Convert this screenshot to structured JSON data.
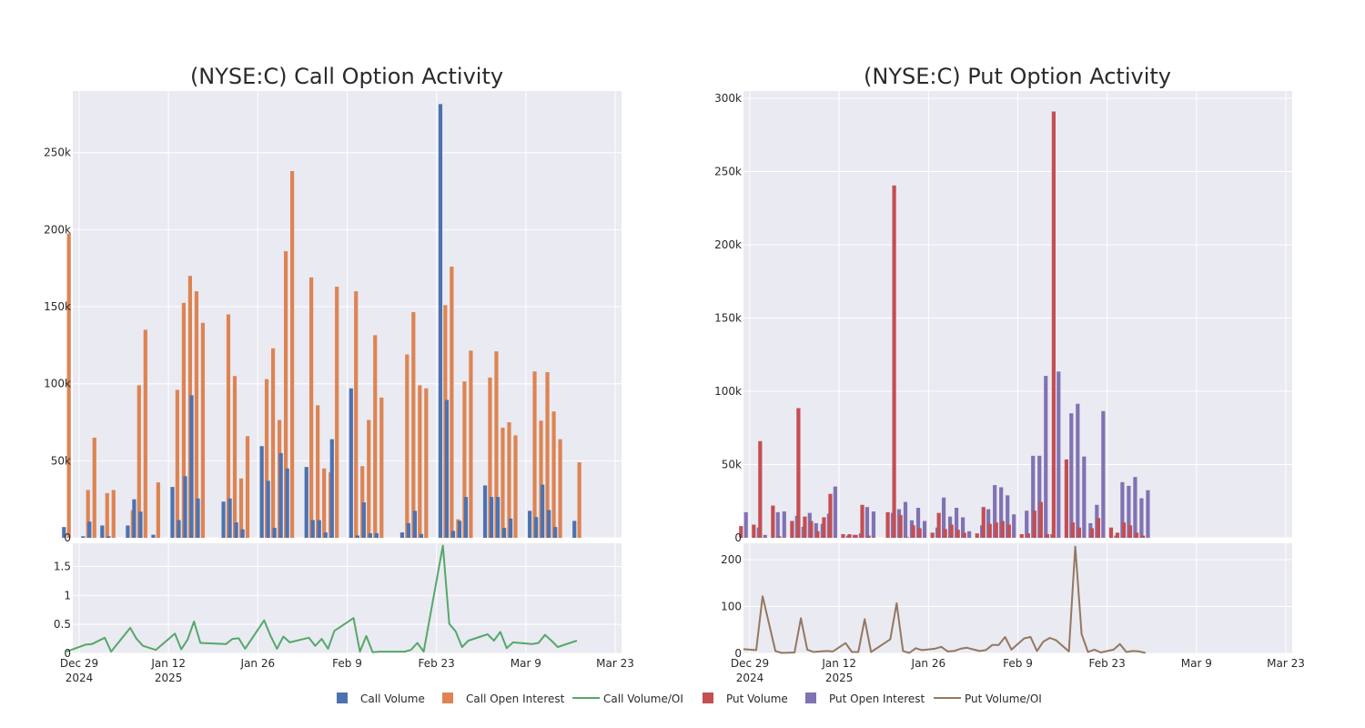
{
  "colors": {
    "call_volume": "#4c72b0",
    "call_open_interest": "#dd8452",
    "call_ratio": "#55a868",
    "put_volume": "#c44e52",
    "put_open_interest": "#8172b3",
    "put_ratio": "#937860",
    "plot_bg": "#eaeaf2",
    "grid": "#ffffff"
  },
  "x_axis": {
    "date_ticks": [
      "2024-12-29",
      "2025-01-12",
      "2025-01-26",
      "2025-02-09",
      "2025-02-23",
      "2025-03-09",
      "2025-03-23"
    ],
    "tick_labels": [
      [
        "Dec 29",
        "2024"
      ],
      [
        "Jan 12",
        "2025"
      ],
      [
        "Jan 26",
        ""
      ],
      [
        "Feb 9",
        ""
      ],
      [
        "Feb 23",
        ""
      ],
      [
        "Mar 9",
        ""
      ],
      [
        "Mar 23",
        ""
      ]
    ],
    "range": [
      "2024-12-28",
      "2025-03-24"
    ]
  },
  "legend": {
    "placement": "bottom-center",
    "items": [
      {
        "label": "Call Volume",
        "kind": "square",
        "color_key": "call_volume"
      },
      {
        "label": "Call Open Interest",
        "kind": "square",
        "color_key": "call_open_interest"
      },
      {
        "label": "Call Volume/OI",
        "kind": "line",
        "color_key": "call_ratio"
      },
      {
        "label": "Put Volume",
        "kind": "square",
        "color_key": "put_volume"
      },
      {
        "label": "Put Open Interest",
        "kind": "square",
        "color_key": "put_open_interest"
      },
      {
        "label": "Put Volume/OI",
        "kind": "line",
        "color_key": "put_ratio"
      }
    ]
  },
  "chart_data": [
    {
      "type": "bar",
      "title": "(NYSE:C) Call Option Activity",
      "grid": true,
      "ylim": [
        0,
        290000
      ],
      "ytick_values": [
        0,
        50000,
        100000,
        150000,
        200000,
        250000
      ],
      "ytick_labels": [
        "0",
        "50k",
        "100k",
        "150k",
        "200k",
        "250k"
      ],
      "ratio_ylim": [
        0,
        1.9
      ],
      "ratio_tick_values": [
        0,
        0.5,
        1,
        1.5
      ],
      "ratio_tick_labels": [
        "0",
        "0.5",
        "1",
        "1.5"
      ],
      "x": [
        "2024-12-27",
        "2024-12-30",
        "2024-12-31",
        "2025-01-02",
        "2025-01-03",
        "2025-01-06",
        "2025-01-07",
        "2025-01-08",
        "2025-01-10",
        "2025-01-13",
        "2025-01-14",
        "2025-01-15",
        "2025-01-16",
        "2025-01-17",
        "2025-01-21",
        "2025-01-22",
        "2025-01-23",
        "2025-01-24",
        "2025-01-27",
        "2025-01-28",
        "2025-01-29",
        "2025-01-30",
        "2025-01-31",
        "2025-02-03",
        "2025-02-04",
        "2025-02-05",
        "2025-02-06",
        "2025-02-07",
        "2025-02-10",
        "2025-02-11",
        "2025-02-12",
        "2025-02-13",
        "2025-02-14",
        "2025-02-18",
        "2025-02-19",
        "2025-02-20",
        "2025-02-21",
        "2025-02-24",
        "2025-02-25",
        "2025-02-26",
        "2025-02-27",
        "2025-02-28",
        "2025-03-03",
        "2025-03-04",
        "2025-03-05",
        "2025-03-06",
        "2025-03-07",
        "2025-03-10",
        "2025-03-11",
        "2025-03-12",
        "2025-03-13",
        "2025-03-14",
        "2025-03-17",
        "2025-03-18",
        "2025-03-19",
        "2025-03-20",
        "2025-03-21",
        "2025-03-24"
      ],
      "series": [
        {
          "name": "Call Volume",
          "color_key": "call_volume",
          "values": [
            7000,
            1000,
            10500,
            8000,
            1000,
            8000,
            25000,
            17000,
            2000,
            33000,
            11500,
            40000,
            92500,
            25500,
            23500,
            25500,
            10000,
            5500,
            59500,
            37000,
            6500,
            55000,
            45000,
            46000,
            11500,
            11500,
            3500,
            64000,
            97000,
            1500,
            23000,
            3000,
            3000,
            3500,
            9500,
            17500,
            2500,
            281500,
            89500,
            4500,
            11000,
            26500,
            34000,
            26500,
            26500,
            6500,
            12500,
            17500,
            13500,
            34500,
            18000,
            7000,
            11000,
            0,
            0,
            0,
            0,
            0
          ]
        },
        {
          "name": "Call Open Interest",
          "color_key": "call_open_interest",
          "values": [
            197500,
            31000,
            65000,
            29000,
            31000,
            18000,
            99000,
            135000,
            36000,
            96000,
            152500,
            170000,
            160000,
            139500,
            145000,
            105000,
            38500,
            66000,
            103000,
            123000,
            76500,
            186000,
            238000,
            169000,
            86000,
            45000,
            42500,
            163000,
            160000,
            46500,
            76500,
            131500,
            91000,
            119000,
            146500,
            99000,
            97000,
            151000,
            176000,
            12000,
            101500,
            121500,
            104000,
            121000,
            71500,
            75000,
            66500,
            108000,
            76000,
            107500,
            82000,
            64000,
            49000,
            0,
            0,
            0,
            0,
            0
          ]
        },
        {
          "name": "Call Volume/OI",
          "color_key": "call_ratio",
          "values": [
            0.03,
            0.15,
            0.16,
            0.27,
            0.03,
            0.44,
            0.25,
            0.13,
            0.06,
            0.34,
            0.07,
            0.24,
            0.55,
            0.18,
            0.16,
            0.25,
            0.26,
            0.08,
            0.57,
            0.3,
            0.08,
            0.29,
            0.19,
            0.27,
            0.13,
            0.25,
            0.08,
            0.39,
            0.61,
            0.03,
            0.3,
            0.02,
            0.03,
            0.03,
            0.06,
            0.18,
            0.03,
            1.86,
            0.51,
            0.38,
            0.11,
            0.22,
            0.33,
            0.22,
            0.37,
            0.09,
            0.19,
            0.16,
            0.18,
            0.32,
            0.22,
            0.11,
            0.22,
            0,
            0,
            0,
            0,
            0
          ]
        }
      ],
      "n": 53
    },
    {
      "type": "bar",
      "title": "(NYSE:C) Put Option Activity",
      "grid": true,
      "ylim": [
        0,
        305000
      ],
      "ytick_values": [
        0,
        50000,
        100000,
        150000,
        200000,
        250000,
        300000
      ],
      "ytick_labels": [
        "0",
        "50k",
        "100k",
        "150k",
        "200k",
        "250k",
        "300k"
      ],
      "ratio_ylim": [
        0,
        235
      ],
      "ratio_tick_values": [
        0,
        100,
        200
      ],
      "ratio_tick_labels": [
        "0",
        "100",
        "200"
      ],
      "x": [
        "2024-12-28",
        "2024-12-30",
        "2024-12-31",
        "2025-01-02",
        "2025-01-03",
        "2025-01-05",
        "2025-01-06",
        "2025-01-07",
        "2025-01-08",
        "2025-01-09",
        "2025-01-10",
        "2025-01-11",
        "2025-01-13",
        "2025-01-14",
        "2025-01-15",
        "2025-01-16",
        "2025-01-17",
        "2025-01-20",
        "2025-01-21",
        "2025-01-22",
        "2025-01-23",
        "2025-01-24",
        "2025-01-25",
        "2025-01-27",
        "2025-01-28",
        "2025-01-29",
        "2025-01-30",
        "2025-01-31",
        "2025-02-01",
        "2025-02-03",
        "2025-02-04",
        "2025-02-05",
        "2025-02-06",
        "2025-02-07",
        "2025-02-08",
        "2025-02-10",
        "2025-02-11",
        "2025-02-12",
        "2025-02-13",
        "2025-02-14",
        "2025-02-15",
        "2025-02-17",
        "2025-02-18",
        "2025-02-19",
        "2025-02-20",
        "2025-02-21",
        "2025-02-22",
        "2025-02-24",
        "2025-02-25",
        "2025-02-26",
        "2025-02-27",
        "2025-02-28",
        "2025-03-01",
        "2025-03-03",
        "2025-03-04",
        "2025-03-05",
        "2025-03-06",
        "2025-03-07",
        "2025-03-08",
        "2025-03-10",
        "2025-03-11",
        "2025-03-12",
        "2025-03-13",
        "2025-03-14",
        "2025-03-15",
        "2025-03-17",
        "2025-03-18"
      ],
      "series": [
        {
          "name": "Put Volume",
          "color_key": "put_volume",
          "values": [
            8000,
            9000,
            66000,
            22000,
            1000,
            11500,
            88500,
            14500,
            11500,
            4500,
            14000,
            30000,
            2500,
            2500,
            2000,
            22500,
            1500,
            17500,
            240500,
            15500,
            500,
            8500,
            6500,
            3500,
            17000,
            6000,
            9000,
            5500,
            3500,
            3000,
            21000,
            9500,
            10500,
            11500,
            9000,
            2500,
            3000,
            18500,
            24500,
            2500,
            291000,
            53500,
            10500,
            7000,
            0,
            6500,
            13500,
            7000,
            3500,
            10500,
            8500,
            3500,
            1500,
            0,
            0,
            0,
            0,
            0,
            0,
            0,
            0,
            0,
            0,
            0,
            0,
            0,
            0
          ]
        },
        {
          "name": "Put Open Interest",
          "color_key": "put_open_interest",
          "values": [
            17500,
            7000,
            2000,
            17500,
            18000,
            15000,
            7500,
            17000,
            10000,
            9500,
            16500,
            35000,
            1500,
            2000,
            3000,
            21000,
            18000,
            17000,
            19500,
            24500,
            12000,
            20500,
            11500,
            7000,
            27500,
            14500,
            20500,
            14000,
            4500,
            8500,
            19500,
            36000,
            34500,
            29000,
            16000,
            18500,
            56000,
            56000,
            110500,
            2500,
            113500,
            85000,
            91500,
            55500,
            10000,
            22500,
            86500,
            1500,
            38000,
            35500,
            41500,
            27000,
            32500,
            0,
            0,
            0,
            0,
            0,
            0,
            0,
            0,
            0,
            0,
            0,
            0,
            0,
            0
          ]
        },
        {
          "name": "Put Volume/OI",
          "color_key": "put_ratio",
          "values": [
            9,
            7,
            122,
            5,
            1,
            2,
            75,
            8,
            3,
            4,
            5,
            4,
            22,
            3,
            3,
            73,
            3,
            30,
            107,
            5,
            1,
            11,
            7,
            10,
            14,
            4,
            5,
            10,
            12,
            5,
            7,
            18,
            18,
            35,
            8,
            32,
            35,
            5,
            25,
            33,
            28,
            4,
            228,
            41,
            3,
            8,
            2,
            8,
            20,
            3,
            5,
            4,
            1,
            0,
            0,
            0,
            0,
            0,
            0,
            0,
            0,
            0,
            0,
            0,
            0,
            0,
            0
          ]
        }
      ],
      "n": 53
    }
  ]
}
